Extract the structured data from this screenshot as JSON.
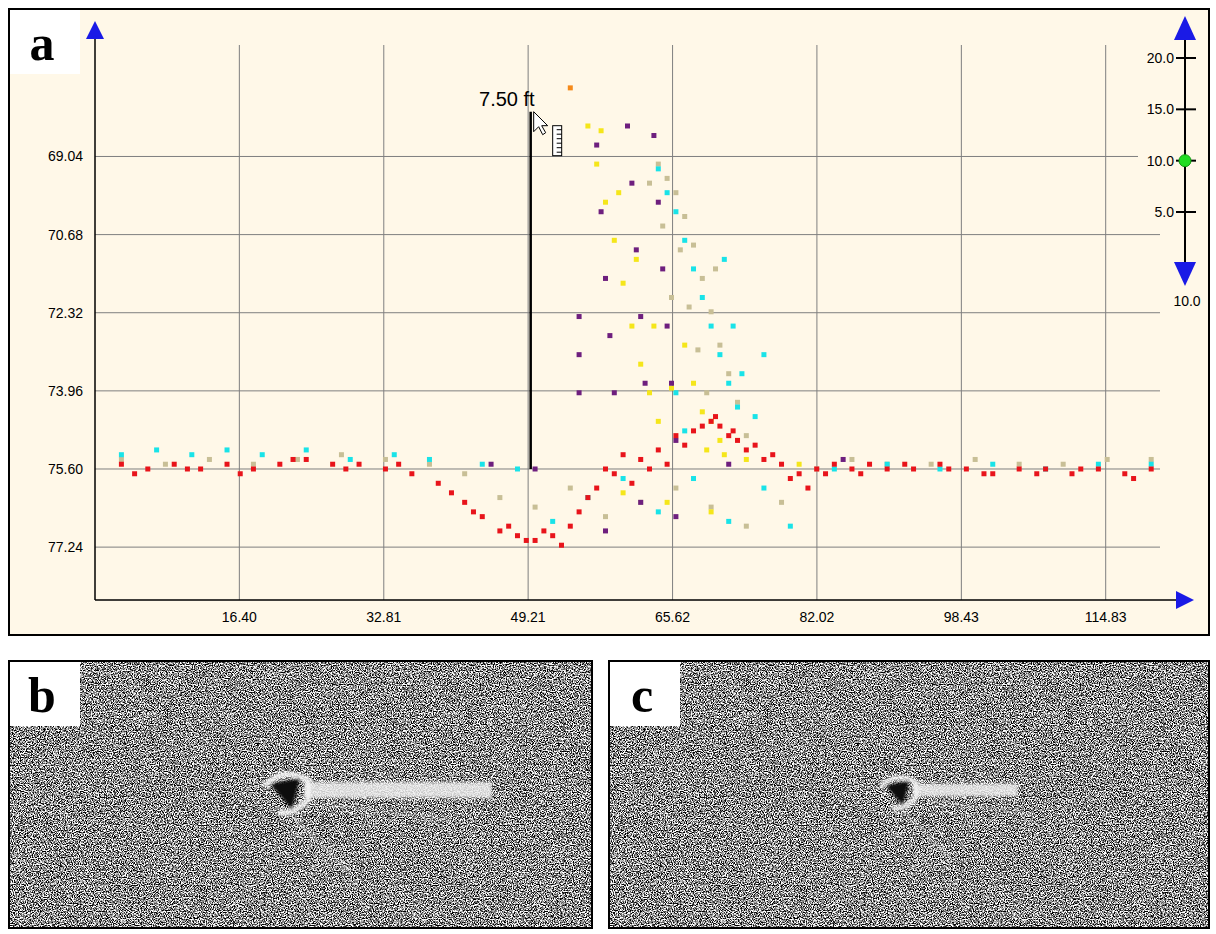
{
  "panel_labels": [
    "a",
    "b",
    "c"
  ],
  "chart_data": {
    "type": "scatter",
    "xlim": [
      0,
      121
    ],
    "ylim": [
      78.35,
      66.7
    ],
    "xticks": [
      {
        "value": 16.4,
        "label": "16.40"
      },
      32.81,
      49.21,
      65.62,
      82.02,
      98.43,
      114.83
    ],
    "yticks": [
      69.04,
      70.68,
      72.32,
      73.96,
      {
        "value": 75.6,
        "label": "75.60"
      },
      77.24
    ],
    "grid": true,
    "marker": "square",
    "series": [
      {
        "color": "#c8bf96",
        "x": [
          3,
          8,
          13,
          18,
          23,
          28,
          33,
          38,
          42,
          46,
          50,
          54,
          58,
          62,
          66,
          70,
          74,
          78,
          82,
          86,
          90,
          95,
          100,
          105,
          110,
          115,
          120,
          63,
          64,
          65,
          66,
          67,
          68,
          69,
          70,
          71,
          72,
          66.5,
          67.5,
          68.5,
          69.5,
          64.5,
          65.5,
          73,
          74,
          70.5
        ],
        "values": [
          75.4,
          75.5,
          75.4,
          75.5,
          75.4,
          75.3,
          75.4,
          75.5,
          75.7,
          76.2,
          76.4,
          76.0,
          76.6,
          76.3,
          76.0,
          76.4,
          76.8,
          76.3,
          75.6,
          75.4,
          75.5,
          75.5,
          75.4,
          75.5,
          75.5,
          75.4,
          75.4,
          69.6,
          69.2,
          69.5,
          69.8,
          70.3,
          70.9,
          71.6,
          72.3,
          73.0,
          73.6,
          71.0,
          72.2,
          73.1,
          74.0,
          70.5,
          72.0,
          74.2,
          74.9,
          71.4
        ]
      },
      {
        "color": "#19e3e8",
        "x": [
          3,
          7,
          11,
          15,
          19,
          24,
          29,
          34,
          38,
          44,
          48,
          52,
          56,
          60,
          64,
          68,
          72,
          76,
          79,
          84,
          90,
          96,
          102,
          108,
          114,
          120,
          64,
          65,
          66,
          67,
          68,
          69,
          70,
          71,
          72,
          73,
          71.5,
          72.5,
          73.5,
          66,
          67,
          75,
          76
        ],
        "values": [
          75.3,
          75.2,
          75.3,
          75.2,
          75.3,
          75.2,
          75.4,
          75.3,
          75.4,
          75.5,
          75.6,
          76.7,
          76.2,
          75.8,
          76.5,
          75.8,
          76.7,
          76.0,
          76.8,
          75.6,
          75.5,
          75.6,
          75.5,
          75.6,
          75.5,
          75.5,
          69.3,
          69.8,
          70.2,
          70.8,
          71.4,
          72.0,
          72.6,
          73.2,
          73.8,
          74.3,
          71.2,
          72.6,
          73.6,
          74.0,
          74.8,
          74.5,
          73.2
        ]
      },
      {
        "color": "#f5e61a",
        "x": [
          56,
          57,
          58,
          59,
          60,
          61,
          62,
          63,
          64,
          57.5,
          59.5,
          61.5,
          63.5,
          65.5,
          67,
          68,
          69,
          70,
          71,
          60,
          65,
          70,
          74,
          80,
          69.5,
          71.5
        ],
        "values": [
          68.4,
          69.2,
          70.0,
          70.8,
          71.7,
          72.6,
          73.4,
          74.0,
          74.6,
          68.5,
          69.8,
          71.2,
          72.6,
          73.9,
          73.0,
          73.8,
          74.4,
          74.6,
          75.0,
          76.1,
          76.3,
          76.5,
          75.4,
          75.5,
          75.2,
          75.3
        ]
      },
      {
        "color": "#6e1f7e",
        "x": [
          55,
          55,
          55,
          57,
          57.5,
          58,
          58.5,
          59,
          60.5,
          61,
          61.5,
          62,
          62.5,
          63.5,
          64,
          64.5,
          65,
          65.5,
          66,
          62,
          58,
          66,
          72,
          50,
          45,
          85
        ],
        "values": [
          72.4,
          73.2,
          74.0,
          68.8,
          70.2,
          71.6,
          72.8,
          74.0,
          68.4,
          69.6,
          71.0,
          72.4,
          73.8,
          68.6,
          70.0,
          71.4,
          72.6,
          73.8,
          75.0,
          76.3,
          76.9,
          76.6,
          75.5,
          75.6,
          75.5,
          75.4
        ]
      },
      {
        "color": "#f58a1a",
        "x": [
          54
        ],
        "values": [
          67.6
        ]
      },
      {
        "color": "#e8141b",
        "x": [
          3,
          6,
          9,
          12,
          15,
          18,
          21,
          24,
          27,
          30,
          33,
          36,
          39,
          42,
          44,
          46,
          48,
          50,
          52,
          54,
          56,
          58,
          60,
          62,
          64,
          66,
          68,
          70,
          71,
          72,
          73,
          74,
          76,
          78,
          80,
          82,
          84,
          86,
          88,
          90,
          93,
          96,
          99,
          102,
          105,
          108,
          111,
          114,
          117,
          120,
          4.5,
          10.5,
          16.5,
          22.5,
          28.5,
          34.5,
          40.5,
          43,
          47,
          49,
          51,
          53,
          55,
          57,
          59,
          61,
          63,
          65,
          67,
          69,
          70.5,
          72.5,
          75,
          77,
          79,
          81,
          83,
          87,
          92,
          97,
          101,
          107,
          112,
          118
        ],
        "values": [
          75.5,
          75.6,
          75.5,
          75.6,
          75.5,
          75.6,
          75.5,
          75.4,
          75.5,
          75.5,
          75.6,
          75.7,
          75.9,
          76.3,
          76.6,
          76.9,
          77.0,
          77.1,
          77.0,
          76.8,
          76.2,
          75.6,
          75.3,
          75.4,
          75.2,
          74.9,
          74.8,
          74.6,
          74.7,
          74.9,
          75.0,
          75.2,
          75.4,
          75.5,
          75.7,
          75.6,
          75.5,
          75.6,
          75.5,
          75.6,
          75.6,
          75.5,
          75.6,
          75.7,
          75.6,
          75.6,
          75.7,
          75.6,
          75.7,
          75.6,
          75.7,
          75.6,
          75.7,
          75.4,
          75.6,
          75.5,
          76.1,
          76.5,
          76.8,
          77.1,
          76.9,
          77.2,
          76.5,
          76.0,
          75.7,
          75.9,
          75.6,
          75.5,
          75.1,
          74.7,
          74.5,
          74.8,
          75.1,
          75.3,
          75.8,
          76.0,
          75.7,
          75.7,
          75.5,
          75.6,
          75.7,
          75.7,
          75.6,
          75.8
        ]
      }
    ],
    "annotations": [
      {
        "text": "7.50 ft",
        "x": 49.5,
        "y1": 75.6,
        "y2": 68.1
      }
    ],
    "scale_control": {
      "ticks": [
        {
          "value": 20,
          "label": "20.0"
        },
        {
          "value": 15,
          "label": "15.0"
        },
        {
          "value": 10,
          "label": "10.0"
        },
        {
          "value": 5,
          "label": "5.0"
        }
      ],
      "setting": 10,
      "bottom_label": "10.0"
    }
  }
}
